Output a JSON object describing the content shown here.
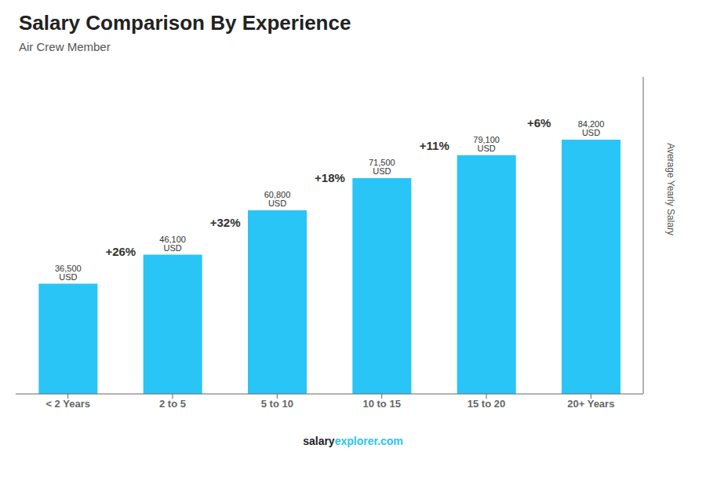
{
  "chart_data": {
    "type": "bar",
    "title": "Salary Comparison By Experience",
    "subtitle": "Air Crew Member",
    "categories": [
      "< 2 Years",
      "2 to 5",
      "5 to 10",
      "10 to 15",
      "15 to 20",
      "20+ Years"
    ],
    "values": [
      36500,
      46100,
      60800,
      71500,
      79100,
      84200
    ],
    "value_labels": [
      "36,500 USD",
      "46,100 USD",
      "60,800 USD",
      "71,500 USD",
      "79,100 USD",
      "84,200 USD"
    ],
    "data_labels": true,
    "color": "#29c5f6",
    "ylim": [
      0,
      105000
    ],
    "ylabel": "Average Yearly Salary",
    "tick_labels": "x",
    "grid": false,
    "annotations": [
      "+26%",
      "+32%",
      "+18%",
      "+11%",
      "+6%"
    ],
    "footer": [
      "salary",
      "explorer.com"
    ]
  }
}
